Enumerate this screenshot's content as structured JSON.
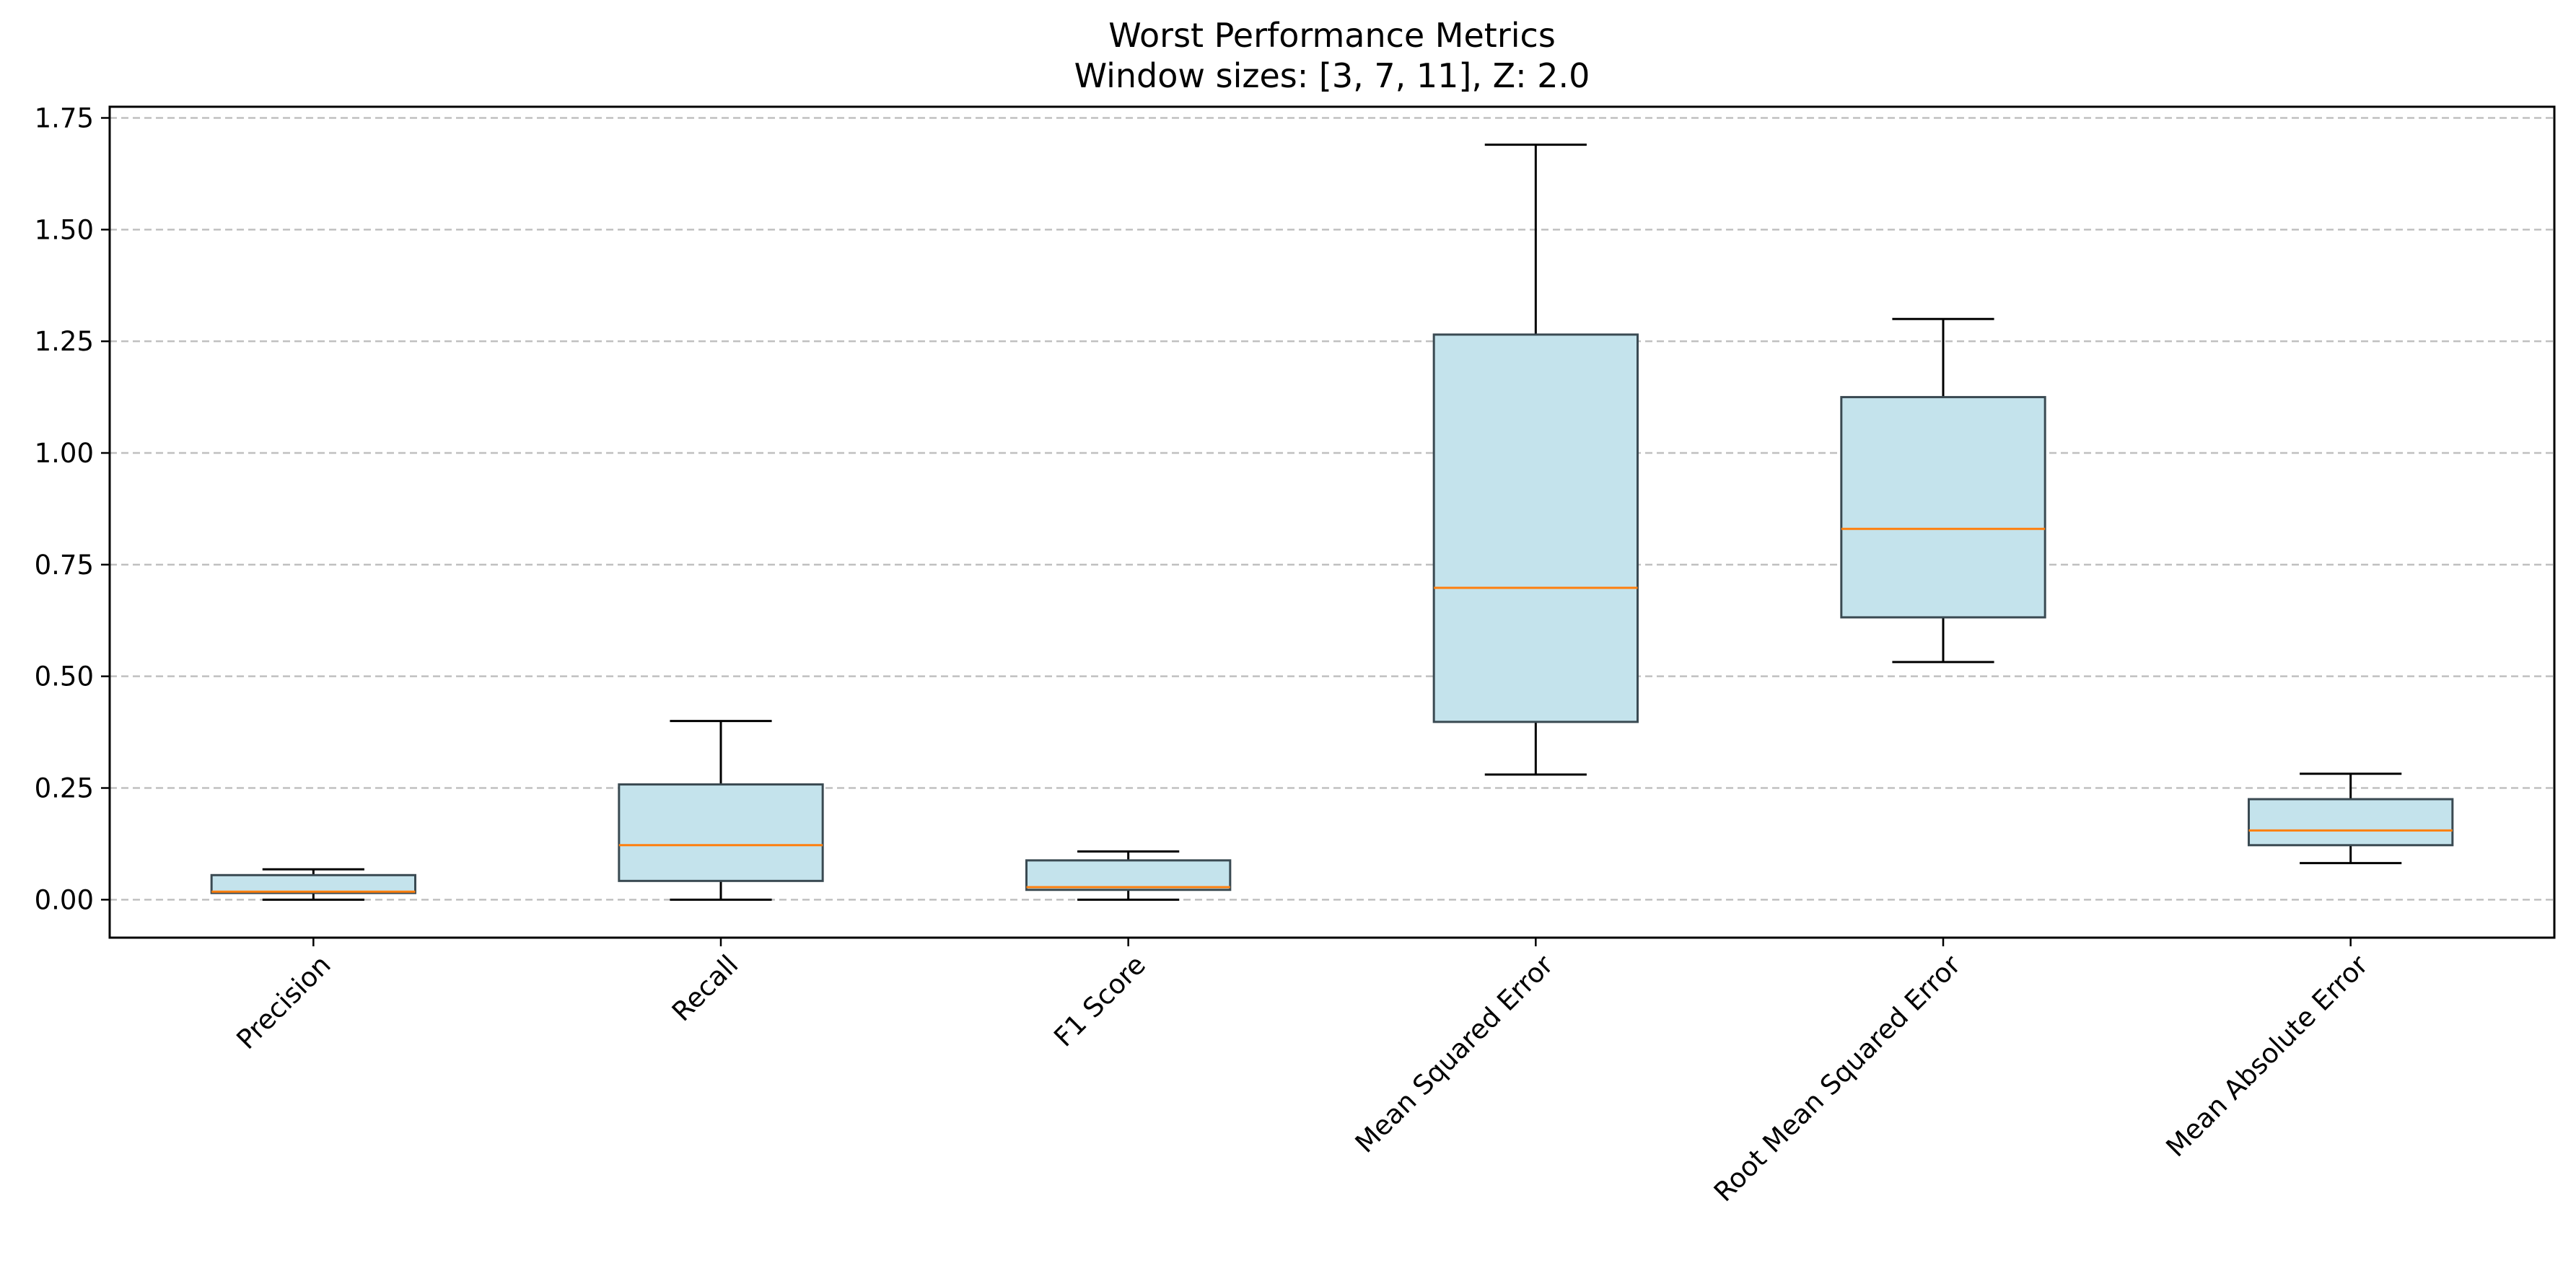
{
  "chart_data": {
    "type": "box",
    "title": "Worst Performance Metrics",
    "subtitle": "Window sizes: [3, 7, 11], Z: 2.0",
    "xlabel": "",
    "ylabel": "",
    "ylim": [
      -0.085,
      1.775
    ],
    "yticks": [
      0.0,
      0.25,
      0.5,
      0.75,
      1.0,
      1.25,
      1.5,
      1.75
    ],
    "ytick_labels": [
      "0.00",
      "0.25",
      "0.50",
      "0.75",
      "1.00",
      "1.25",
      "1.50",
      "1.75"
    ],
    "grid": "y-dashed",
    "categories": [
      "Precision",
      "Recall",
      "F1 Score",
      "Mean Squared Error",
      "Root Mean Squared Error",
      "Mean Absolute Error"
    ],
    "boxes": [
      {
        "whisker_low": 0.0,
        "q1": 0.015,
        "median": 0.018,
        "q3": 0.055,
        "whisker_high": 0.068
      },
      {
        "whisker_low": 0.0,
        "q1": 0.042,
        "median": 0.122,
        "q3": 0.258,
        "whisker_high": 0.4
      },
      {
        "whisker_low": 0.0,
        "q1": 0.022,
        "median": 0.028,
        "q3": 0.088,
        "whisker_high": 0.108
      },
      {
        "whisker_low": 0.28,
        "q1": 0.398,
        "median": 0.698,
        "q3": 1.265,
        "whisker_high": 1.69
      },
      {
        "whisker_low": 0.532,
        "q1": 0.632,
        "median": 0.83,
        "q3": 1.125,
        "whisker_high": 1.3
      },
      {
        "whisker_low": 0.082,
        "q1": 0.122,
        "median": 0.155,
        "q3": 0.225,
        "whisker_high": 0.282
      }
    ],
    "colors": {
      "box_fill": "#c4e3ec",
      "box_edge": "#3a4a52",
      "median": "#ff7f0e",
      "whisker": "#000000",
      "grid": "#c0c0c0",
      "axes": "#000000"
    }
  }
}
